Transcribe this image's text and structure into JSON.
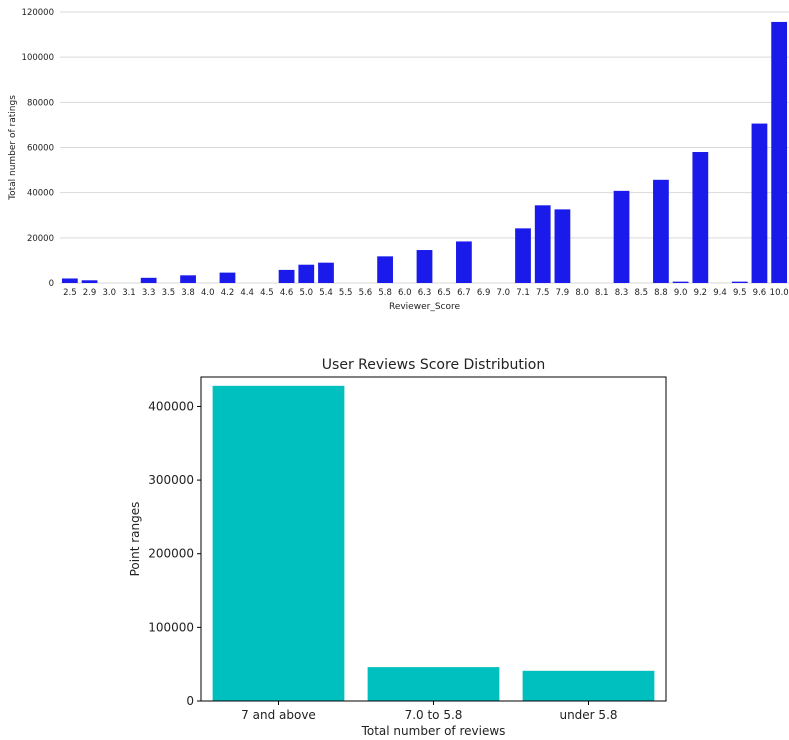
{
  "chart_data": [
    {
      "type": "bar",
      "title": "",
      "xlabel": "Reviewer_Score",
      "ylabel": "Total number of ratings",
      "ylim": [
        0,
        120000
      ],
      "yticks": [
        "0",
        "20000",
        "40000",
        "60000",
        "80000",
        "100000",
        "120000"
      ],
      "grid": true,
      "bar_color": "#1a1aeb",
      "categories": [
        "2.5",
        "2.9",
        "3.0",
        "3.1",
        "3.3",
        "3.5",
        "3.8",
        "4.0",
        "4.2",
        "4.4",
        "4.5",
        "4.6",
        "5.0",
        "5.4",
        "5.5",
        "5.6",
        "5.8",
        "6.0",
        "6.3",
        "6.5",
        "6.7",
        "6.9",
        "7.0",
        "7.1",
        "7.5",
        "7.9",
        "8.0",
        "8.1",
        "8.3",
        "8.5",
        "8.8",
        "9.0",
        "9.2",
        "9.4",
        "9.5",
        "9.6",
        "10.0"
      ],
      "values": [
        2000,
        1200,
        0,
        0,
        2300,
        0,
        3400,
        0,
        4600,
        0,
        0,
        5800,
        8100,
        9000,
        0,
        0,
        11800,
        0,
        14600,
        0,
        18400,
        0,
        0,
        24200,
        34400,
        32600,
        0,
        0,
        40800,
        0,
        45700,
        600,
        58000,
        0,
        600,
        70600,
        115600
      ]
    },
    {
      "type": "bar",
      "title": "User Reviews Score Distribution",
      "xlabel": "Total number of reviews",
      "ylabel": "Point ranges",
      "ylim": [
        0,
        440000
      ],
      "yticks": [
        "0",
        "100000",
        "200000",
        "300000",
        "400000"
      ],
      "grid": false,
      "bar_color": "#00bfbf",
      "categories": [
        "7 and above",
        "7.0 to 5.8",
        "under 5.8"
      ],
      "values": [
        428000,
        46000,
        41000
      ]
    }
  ]
}
